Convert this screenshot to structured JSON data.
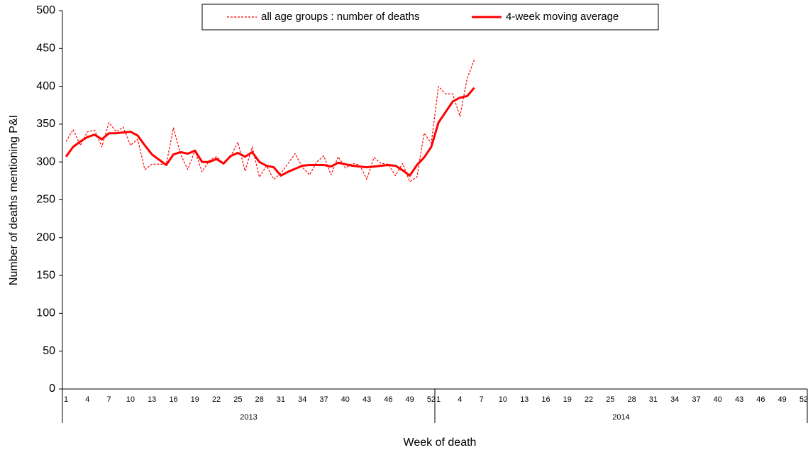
{
  "chart_data": {
    "type": "line",
    "y_label": "Number of deaths mentioning P&I",
    "x_label": "Week of death",
    "groups": [
      "2013",
      "2014"
    ],
    "categories": [
      "1",
      null,
      null,
      "4",
      null,
      null,
      "7",
      null,
      null,
      "10",
      null,
      null,
      "13",
      null,
      null,
      "16",
      null,
      null,
      "19",
      null,
      null,
      "22",
      null,
      null,
      "25",
      null,
      null,
      "28",
      null,
      null,
      "31",
      null,
      null,
      "34",
      null,
      null,
      "37",
      null,
      null,
      "40",
      null,
      null,
      "43",
      null,
      null,
      "46",
      null,
      null,
      "49",
      null,
      null,
      "52",
      "1",
      null,
      null,
      "4",
      null,
      null,
      "7",
      null,
      null,
      "10",
      null,
      null,
      "13",
      null,
      null,
      "16",
      null,
      null,
      "19",
      null,
      null,
      "22",
      null,
      null,
      "25",
      null,
      null,
      "28",
      null,
      null,
      "31",
      null,
      null,
      "34",
      null,
      null,
      "37",
      null,
      null,
      "40",
      null,
      null,
      "43",
      null,
      null,
      "46",
      null,
      null,
      "49",
      null,
      null,
      "52"
    ],
    "series": [
      {
        "name": "all age groups : number of deaths",
        "color": "#ff0000",
        "line_style": "dashed",
        "values": [
          327,
          343,
          322,
          340,
          342,
          320,
          352,
          340,
          346,
          322,
          330,
          290,
          297,
          297,
          297,
          345,
          310,
          290,
          315,
          287,
          302,
          307,
          298,
          308,
          326,
          288,
          320,
          280,
          295,
          277,
          285,
          298,
          311,
          293,
          283,
          300,
          308,
          283,
          307,
          292,
          298,
          296,
          277,
          306,
          298,
          297,
          282,
          298,
          274,
          280,
          338,
          325,
          400,
          390,
          390,
          360,
          410,
          435,
          null,
          null,
          null,
          null,
          null,
          null,
          null,
          null,
          null,
          null,
          null,
          null,
          null,
          null,
          null,
          null,
          null,
          null,
          null,
          null,
          null,
          null,
          null,
          null,
          null,
          null,
          null,
          null,
          null,
          null,
          null,
          null,
          null,
          null,
          null,
          null,
          null,
          null,
          null,
          null,
          null,
          null,
          null,
          null,
          null,
          null
        ]
      },
      {
        "name": "4-week moving average",
        "color": "#ff0000",
        "line_style": "solid",
        "values": [
          307,
          320,
          327,
          333,
          336,
          330,
          338,
          338,
          339,
          340,
          335,
          322,
          310,
          303,
          296,
          310,
          313,
          311,
          315,
          300,
          300,
          304,
          298,
          308,
          312,
          307,
          313,
          300,
          295,
          293,
          282,
          287,
          291,
          295,
          296,
          296,
          296,
          294,
          299,
          297,
          295,
          294,
          293,
          294,
          295,
          296,
          295,
          289,
          282,
          296,
          306,
          320,
          352,
          366,
          380,
          385,
          387,
          398,
          null,
          null,
          null,
          null,
          null,
          null,
          null,
          null,
          null,
          null,
          null,
          null,
          null,
          null,
          null,
          null,
          null,
          null,
          null,
          null,
          null,
          null,
          null,
          null,
          null,
          null,
          null,
          null,
          null,
          null,
          null,
          null,
          null,
          null,
          null,
          null,
          null,
          null,
          null,
          null,
          null,
          null,
          null,
          null,
          null,
          null
        ]
      }
    ],
    "ylim": [
      0,
      500
    ],
    "yticks": [
      0,
      50,
      100,
      150,
      200,
      250,
      300,
      350,
      400,
      450,
      500
    ],
    "legend": "top"
  }
}
